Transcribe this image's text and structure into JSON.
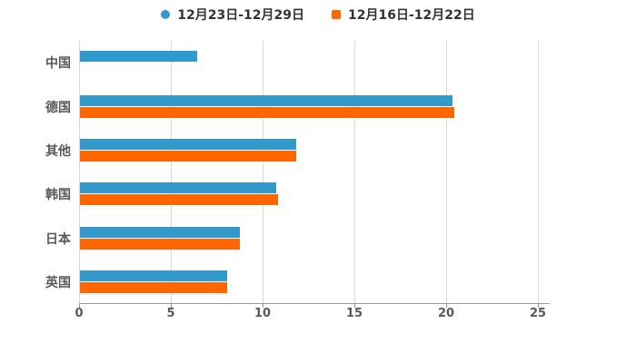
{
  "legend": {
    "items": [
      {
        "label": "12月23日-12月29日",
        "color": "#3399cc",
        "shape": "circle"
      },
      {
        "label": "12月16日-12月22日",
        "color": "#ff6600",
        "shape": "square"
      }
    ]
  },
  "chart_data": {
    "type": "bar",
    "orientation": "horizontal",
    "title": "",
    "xlabel": "",
    "ylabel": "",
    "categories": [
      "中国",
      "德国",
      "其他",
      "韩国",
      "日本",
      "英国"
    ],
    "series": [
      {
        "name": "12月23日-12月29日",
        "color": "#3399cc",
        "values": [
          6.4,
          20.3,
          11.8,
          10.7,
          8.7,
          8.0
        ]
      },
      {
        "name": "12月16日-12月22日",
        "color": "#ff6600",
        "values": [
          0,
          20.4,
          11.8,
          10.8,
          8.7,
          8.0
        ]
      }
    ],
    "xticks": [
      0,
      5,
      10,
      15,
      20,
      25
    ],
    "xlim": [
      0,
      25.6
    ],
    "grid": true,
    "legend_position": "top"
  },
  "colors": {
    "series_blue": "#3399cc",
    "series_orange": "#ff6600",
    "gridline": "#d9d9d9",
    "axis_line": "#999999",
    "tick_text": "#595959",
    "category_text": "#595959",
    "legend_text": "#333333",
    "background": "#ffffff"
  }
}
